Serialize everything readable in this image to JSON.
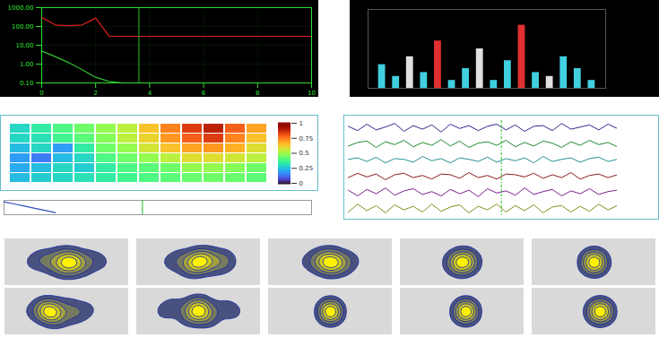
{
  "chart_data": [
    {
      "type": "line",
      "log": "y",
      "grid": true,
      "x": [
        0,
        0.5,
        1,
        1.5,
        2,
        2.5,
        3,
        3.5,
        4,
        5,
        6,
        7,
        8,
        9,
        10
      ],
      "xlim": [
        0,
        10
      ],
      "xticks": [
        0,
        2,
        4,
        6,
        8,
        10
      ],
      "ylim": [
        0.1,
        1000
      ],
      "yticks": [
        {
          "value": 0.1,
          "label": "0.10"
        },
        {
          "value": 1,
          "label": "1.00"
        },
        {
          "value": 10,
          "label": "10.00"
        },
        {
          "value": 100,
          "label": "100.00"
        },
        {
          "value": 1000,
          "label": "1000.00"
        }
      ],
      "series": [
        {
          "color": "#e02020",
          "values": [
            300,
            120,
            110,
            120,
            280,
            30,
            30,
            30,
            30,
            30,
            30,
            30,
            30,
            30,
            30
          ]
        },
        {
          "color": "#30c030",
          "values": [
            5,
            2.5,
            1.2,
            0.5,
            0.2,
            0.12,
            0.1,
            null,
            null,
            null,
            null,
            null,
            null,
            null,
            null
          ]
        }
      ],
      "vline": 3.6
    },
    {
      "type": "bar",
      "tick_labels": false,
      "x": [
        1,
        2,
        3,
        4,
        5,
        6,
        7,
        8,
        9,
        10,
        11,
        12,
        13,
        14,
        15,
        16
      ],
      "values": [
        3,
        1.5,
        4,
        2,
        6,
        1,
        2.5,
        5,
        1,
        3.5,
        8,
        2,
        1.5,
        4,
        2.5,
        1
      ],
      "colors": [
        "#40d0e0",
        "#40d0e0",
        "#e0e0e0",
        "#40d0e0",
        "#e03030",
        "#40d0e0",
        "#40d0e0",
        "#e0e0e0",
        "#40d0e0",
        "#40d0e0",
        "#e03030",
        "#40d0e0",
        "#e0e0e0",
        "#40d0e0",
        "#40d0e0",
        "#40d0e0"
      ],
      "xlim": [
        0,
        17
      ],
      "ylim": [
        0,
        10
      ]
    },
    {
      "type": "heatmap",
      "tick_labels": false,
      "cells": [
        [
          0.3,
          0.35,
          0.4,
          0.45,
          0.5,
          0.55,
          0.65,
          0.75,
          0.85,
          0.9,
          0.8,
          0.7
        ],
        [
          0.3,
          0.32,
          0.38,
          0.42,
          0.48,
          0.55,
          0.62,
          0.72,
          0.8,
          0.85,
          0.75,
          0.65
        ],
        [
          0.25,
          0.3,
          0.2,
          0.35,
          0.45,
          0.5,
          0.58,
          0.65,
          0.7,
          0.72,
          0.68,
          0.6
        ],
        [
          0.2,
          0.15,
          0.25,
          0.3,
          0.4,
          0.45,
          0.5,
          0.55,
          0.6,
          0.6,
          0.58,
          0.55
        ],
        [
          0.22,
          0.25,
          0.3,
          0.28,
          0.35,
          0.4,
          0.42,
          0.45,
          0.5,
          0.5,
          0.48,
          0.45
        ],
        [
          0.25,
          0.28,
          0.3,
          0.32,
          0.35,
          0.38,
          0.4,
          0.42,
          0.44,
          0.45,
          0.44,
          0.42
        ]
      ],
      "colorbar": {
        "range": [
          0,
          1
        ],
        "ticks": [
          0,
          0.25,
          0.5,
          0.75,
          1
        ]
      }
    },
    {
      "type": "line",
      "tick_labels": false,
      "x": [
        0,
        2,
        4,
        6,
        8,
        10
      ],
      "xlim": [
        0,
        60
      ],
      "ylim": [
        0,
        10
      ],
      "series": [
        {
          "color": "#3050c0",
          "values": [
            9,
            7.5,
            6,
            4.5,
            3,
            1.5
          ]
        }
      ],
      "vline": 27
    },
    {
      "type": "multi_line",
      "tick_labels": false,
      "x": [
        0,
        1,
        2,
        3,
        4,
        5,
        6,
        7,
        8,
        9,
        10,
        11,
        12,
        13,
        14,
        15,
        16,
        17,
        18,
        19,
        20,
        21,
        22,
        23,
        24,
        25,
        26,
        27,
        28,
        29
      ],
      "xlim": [
        0,
        29
      ],
      "ylim": [
        -1,
        1
      ],
      "vline": 16.5,
      "series": [
        {
          "color": "#2b2b8f",
          "values": [
            0.2,
            -0.4,
            0.5,
            -0.3,
            0.1,
            0.6,
            -0.5,
            0.3,
            -0.2,
            0.4,
            -0.6,
            0.5,
            -0.1,
            0.3,
            -0.4,
            0.2,
            0.5,
            -0.3,
            0.4,
            -0.5,
            0.2,
            0.3,
            -0.4,
            0.6,
            -0.2,
            0.1,
            0.4,
            -0.3,
            0.5,
            -0.1
          ]
        },
        {
          "color": "#1e8b2e",
          "values": [
            -0.3,
            0.2,
            0.4,
            -0.5,
            0.3,
            -0.1,
            0.5,
            -0.4,
            0.2,
            -0.2,
            0.6,
            -0.3,
            0.4,
            -0.5,
            0.1,
            0.3,
            -0.2,
            0.5,
            -0.4,
            0.2,
            -0.3,
            0.4,
            0.1,
            -0.5,
            0.3,
            -0.2,
            0.5,
            -0.1,
            0.2,
            -0.4
          ]
        },
        {
          "color": "#2a8f8f",
          "values": [
            0.1,
            0.3,
            -0.2,
            0.4,
            -0.4,
            0.2,
            0.1,
            -0.3,
            0.5,
            -0.1,
            0.2,
            -0.4,
            0.3,
            0.1,
            -0.2,
            0.4,
            -0.3,
            0.2,
            -0.1,
            0.3,
            -0.4,
            0.5,
            -0.2,
            0.1,
            0.3,
            -0.3,
            0.2,
            0.4,
            -0.2,
            0.1
          ]
        },
        {
          "color": "#8b1c1c",
          "values": [
            -0.2,
            0.4,
            -0.1,
            0.3,
            -0.5,
            0.2,
            0.4,
            -0.2,
            0.1,
            -0.4,
            0.3,
            0.2,
            -0.3,
            0.5,
            -0.2,
            0.1,
            -0.4,
            0.3,
            0.2,
            -0.1,
            0.4,
            -0.3,
            0.2,
            -0.2,
            0.5,
            -0.4,
            0.1,
            0.3,
            -0.2,
            0.2
          ]
        },
        {
          "color": "#7a1f8f",
          "values": [
            0.3,
            -0.5,
            0.4,
            -0.2,
            0.6,
            -0.4,
            0.2,
            0.5,
            -0.3,
            0.1,
            -0.5,
            0.4,
            -0.2,
            0.3,
            -0.6,
            0.5,
            -0.1,
            0.2,
            -0.4,
            0.6,
            -0.3,
            0.1,
            0.4,
            -0.5,
            0.2,
            -0.2,
            0.5,
            -0.3,
            0.1,
            0.3
          ]
        },
        {
          "color": "#8a8a1c",
          "values": [
            -0.5,
            0.6,
            -0.3,
            0.4,
            -0.6,
            0.5,
            -0.2,
            0.3,
            -0.5,
            0.6,
            -0.4,
            0.2,
            0.5,
            -0.6,
            0.3,
            -0.2,
            0.6,
            -0.5,
            0.4,
            -0.3,
            0.5,
            -0.6,
            0.2,
            0.4,
            -0.5,
            0.3,
            -0.4,
            0.6,
            -0.2,
            0.4
          ]
        }
      ]
    },
    {
      "type": "density",
      "tick_labels": false,
      "xlim": [
        0,
        10
      ],
      "ylim": [
        0,
        10
      ],
      "x": [
        2,
        3,
        4,
        5,
        5.5,
        6,
        7,
        8,
        4.5,
        5,
        6.5,
        3.5,
        5.2,
        4.8,
        5.6
      ],
      "y": [
        5,
        6,
        4,
        5,
        5.5,
        4.5,
        6,
        5,
        6.5,
        3.5,
        4,
        5.2,
        5.1,
        4.9,
        5.3
      ]
    },
    {
      "type": "density",
      "tick_labels": false,
      "xlim": [
        0,
        10
      ],
      "ylim": [
        0,
        10
      ],
      "x": [
        2.5,
        3.5,
        4.5,
        5,
        6,
        7,
        7.5,
        4,
        5.5,
        6.5,
        5,
        4.8,
        5.3
      ],
      "y": [
        5,
        6,
        4.5,
        5,
        5.5,
        6,
        5,
        3.8,
        6.2,
        4.2,
        5.1,
        4.9,
        5.2
      ]
    },
    {
      "type": "density",
      "tick_labels": false,
      "xlim": [
        0,
        10
      ],
      "ylim": [
        0,
        10
      ],
      "x": [
        3,
        4,
        5,
        6,
        7,
        5,
        4.5,
        5.5,
        6,
        4.2,
        5.1,
        4.9
      ],
      "y": [
        5,
        6,
        4.5,
        5,
        5.5,
        6.2,
        4,
        5,
        4.2,
        5.2,
        5,
        5.1
      ]
    },
    {
      "type": "density",
      "tick_labels": false,
      "xlim": [
        0,
        10
      ],
      "ylim": [
        0,
        10
      ],
      "x": [
        4,
        5,
        6,
        5,
        4.5,
        5.5,
        5.2,
        4.8,
        5.1
      ],
      "y": [
        5,
        5.8,
        5,
        4.2,
        4.6,
        5.4,
        5,
        5.1,
        4.9
      ]
    },
    {
      "type": "density",
      "tick_labels": false,
      "xlim": [
        0,
        10
      ],
      "ylim": [
        0,
        10
      ],
      "x": [
        4.5,
        5,
        5.5,
        5,
        5.2,
        4.8,
        5.1
      ],
      "y": [
        5,
        5.5,
        5,
        4.5,
        5,
        5.1,
        4.9
      ]
    },
    {
      "type": "density",
      "tick_labels": false,
      "xlim": [
        0,
        10
      ],
      "ylim": [
        0,
        10
      ],
      "x": [
        2,
        3,
        3.5,
        4,
        5,
        6,
        7,
        3.2,
        3.8,
        3.5,
        3.6,
        4.5,
        5.5
      ],
      "y": [
        5,
        6,
        5,
        4,
        6.5,
        5,
        5.5,
        5.2,
        4.8,
        5.1,
        4.9,
        3.8,
        4.2
      ]
    },
    {
      "type": "density",
      "tick_labels": false,
      "xlim": [
        0,
        10
      ],
      "ylim": [
        0,
        10
      ],
      "x": [
        2,
        3,
        4,
        5,
        6,
        7,
        8,
        4.5,
        5,
        5.5,
        5.1,
        4.9
      ],
      "y": [
        5,
        6.5,
        3.8,
        6.8,
        3.5,
        6,
        5,
        5,
        5.2,
        4.8,
        5,
        5.1
      ]
    },
    {
      "type": "density",
      "tick_labels": false,
      "xlim": [
        0,
        10
      ],
      "ylim": [
        0,
        10
      ],
      "x": [
        4.8,
        5,
        5.2,
        5,
        5.1,
        4.9
      ],
      "y": [
        5,
        5.2,
        5,
        4.8,
        5,
        5
      ]
    },
    {
      "type": "density",
      "tick_labels": false,
      "xlim": [
        0,
        10
      ],
      "ylim": [
        0,
        10
      ],
      "x": [
        5,
        5.3,
        5.6,
        5.2,
        5.4,
        5.3
      ],
      "y": [
        5,
        5.2,
        5,
        4.8,
        5,
        5.1
      ]
    },
    {
      "type": "density",
      "tick_labels": false,
      "xlim": [
        0,
        10
      ],
      "ylim": [
        0,
        10
      ],
      "x": [
        5,
        5.5,
        6,
        5.5,
        5.3,
        5.6,
        5.7
      ],
      "y": [
        5,
        5.4,
        5,
        4.6,
        5,
        5.1,
        4.9
      ]
    }
  ]
}
